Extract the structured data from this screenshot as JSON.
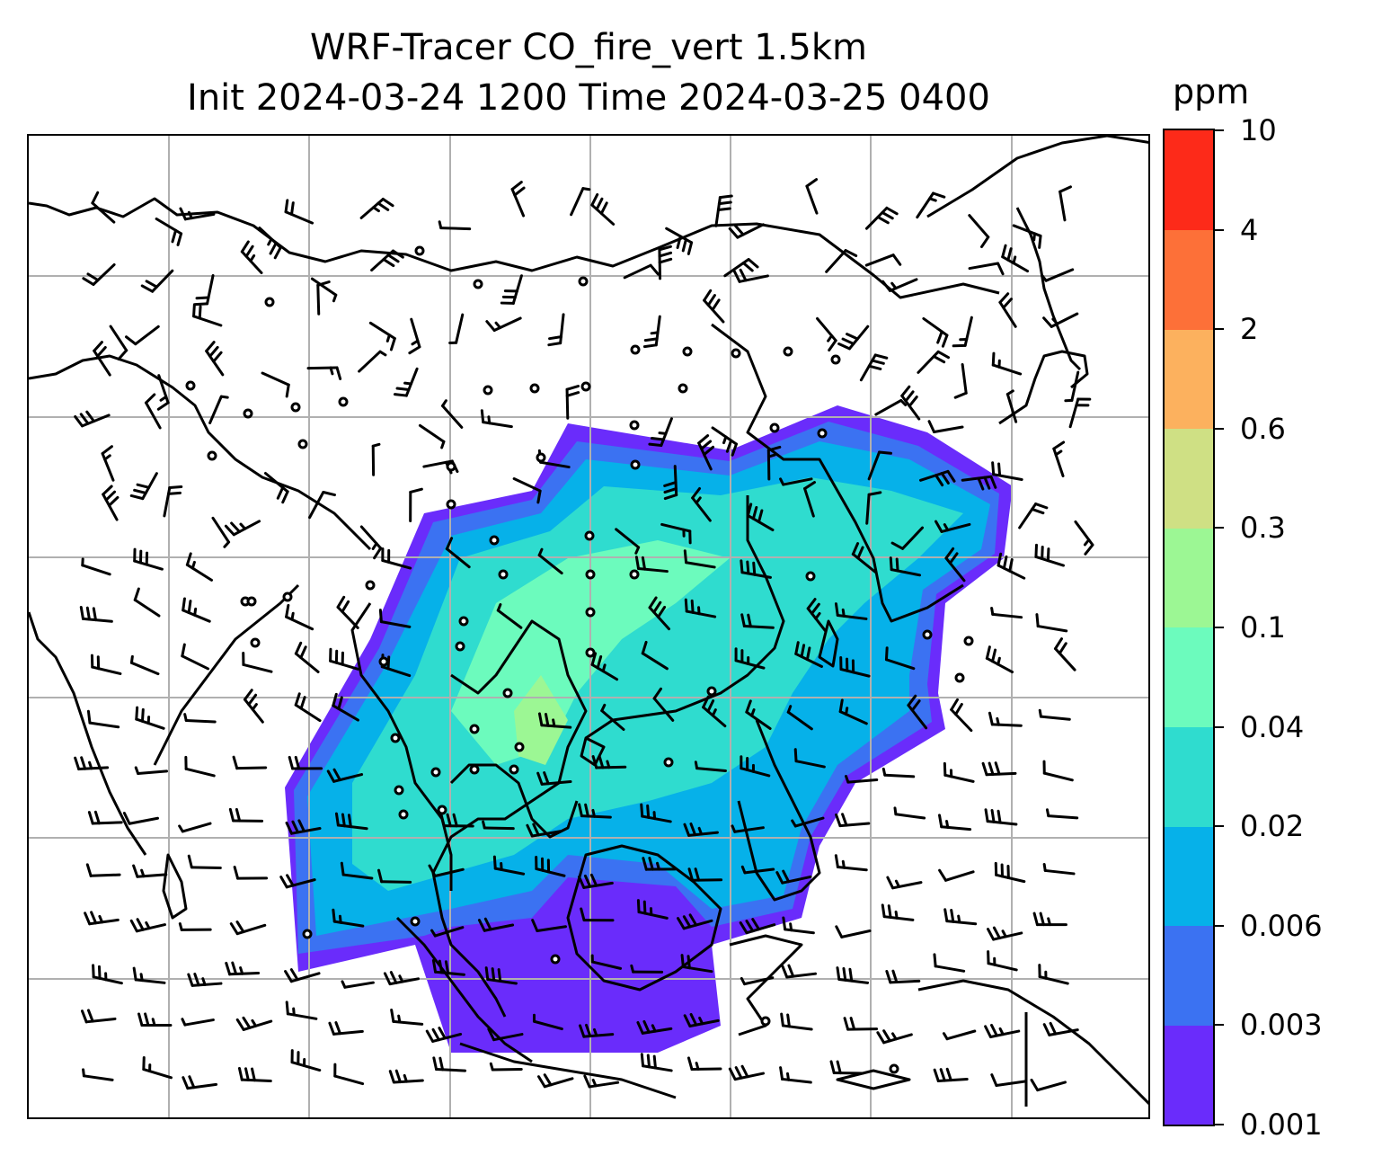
{
  "title": {
    "line1": "WRF-Tracer CO_fire_vert 1.5km",
    "line2": "Init 2024-03-24 1200 Time 2024-03-25 0400"
  },
  "colorbar": {
    "unit": "ppm",
    "levels": [
      "0.001",
      "0.003",
      "0.006",
      "0.02",
      "0.04",
      "0.1",
      "0.3",
      "0.6",
      "2",
      "4",
      "10"
    ],
    "colors": [
      "#6a2cfb",
      "#3b72f2",
      "#06b1e9",
      "#2fdccf",
      "#6cfbbd",
      "#9cf794",
      "#cfe084",
      "#fcb15e",
      "#fd7038",
      "#fd2a19"
    ]
  },
  "map": {
    "projection": "lat-lon grid with coastlines",
    "gridlines": true,
    "overlays": [
      "filled tracer concentration",
      "wind barbs",
      "calm-wind circles"
    ],
    "colors": {
      "coastline": "#000000",
      "gridline": "#b0b0b0"
    }
  }
}
